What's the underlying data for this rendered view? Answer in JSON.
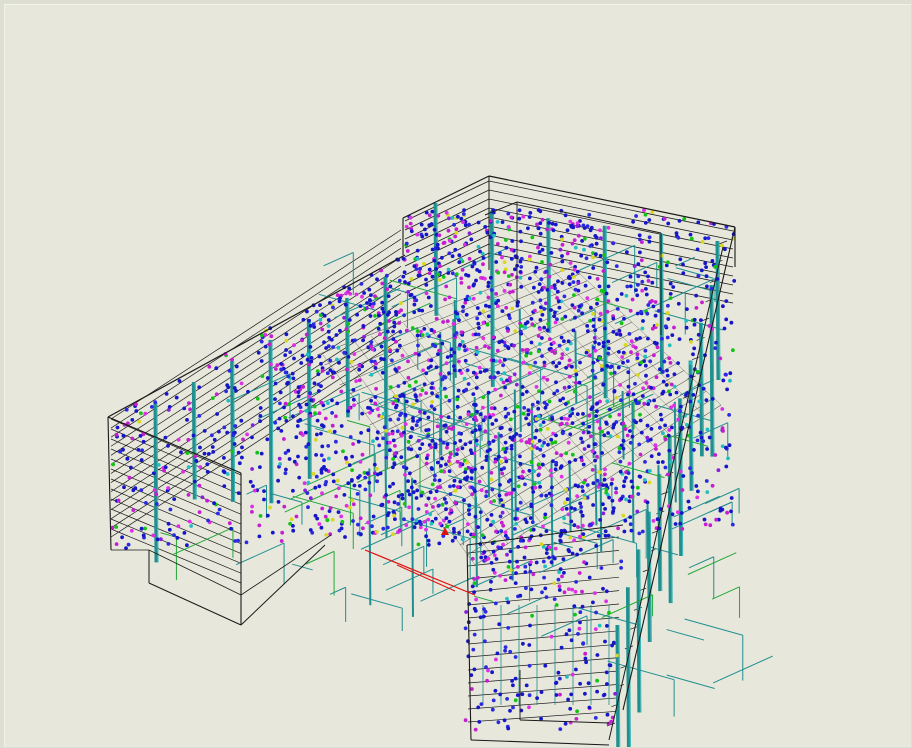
{
  "viewer": {
    "content": "3d-wireframe-building-model",
    "background": "#e7e7dc",
    "frame_color": "#dedfd3"
  },
  "colors": {
    "outline": "#1a1a1a",
    "structure": "#1f8f8f",
    "structure_light": "#39b3b3",
    "pipe_green": "#25a83a",
    "marker_red": "#e01010",
    "points": [
      "#1616c8",
      "#2a2ae0",
      "#c41ed0",
      "#e02ee8",
      "#14c414",
      "#d8d820",
      "#20c0c0",
      "#8a1ee0"
    ]
  }
}
